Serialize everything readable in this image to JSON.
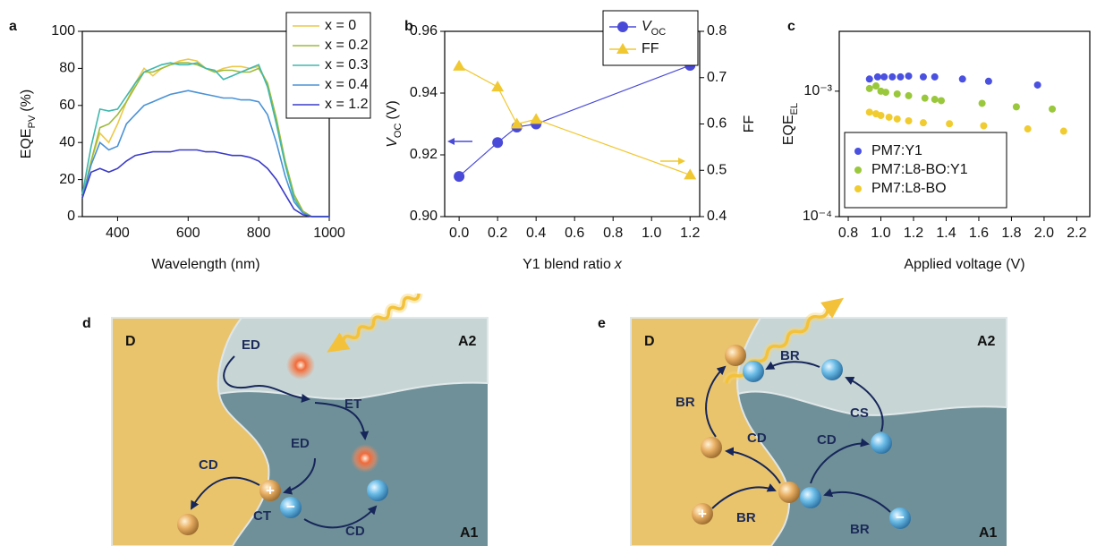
{
  "chart_data": [
    {
      "type": "line",
      "letter": "a",
      "x_label": "Wavelength (nm)",
      "y_label": "EQE",
      "y_label_sub": "PV",
      "y_label_unit": "(%)",
      "x": [
        300,
        325,
        350,
        375,
        400,
        425,
        450,
        475,
        500,
        525,
        550,
        575,
        600,
        625,
        650,
        675,
        700,
        725,
        750,
        775,
        800,
        825,
        850,
        875,
        900,
        925,
        950,
        975,
        1000
      ],
      "series": [
        {
          "name": "x = 0",
          "color": "#ecc94a",
          "values": [
            10,
            30,
            45,
            40,
            50,
            62,
            72,
            80,
            76,
            80,
            82,
            84,
            85,
            84,
            80,
            78,
            80,
            81,
            81,
            80,
            81,
            72,
            52,
            30,
            12,
            3,
            0,
            0,
            0
          ]
        },
        {
          "name": "x = 0.2",
          "color": "#9dbb3a",
          "values": [
            10,
            30,
            48,
            50,
            55,
            62,
            70,
            78,
            78,
            80,
            82,
            83,
            83,
            82,
            80,
            78,
            79,
            79,
            78,
            78,
            80,
            72,
            53,
            30,
            12,
            3,
            0,
            0,
            0
          ]
        },
        {
          "name": "x = 0.3",
          "color": "#3fb8ae",
          "values": [
            12,
            38,
            58,
            57,
            58,
            65,
            72,
            78,
            80,
            82,
            83,
            82,
            82,
            83,
            80,
            79,
            74,
            76,
            78,
            80,
            82,
            70,
            50,
            28,
            10,
            2,
            0,
            0,
            0
          ]
        },
        {
          "name": "x = 0.4",
          "color": "#4a92d6",
          "values": [
            10,
            28,
            40,
            36,
            38,
            50,
            55,
            60,
            62,
            64,
            66,
            67,
            68,
            67,
            66,
            65,
            64,
            64,
            63,
            63,
            62,
            55,
            40,
            22,
            8,
            2,
            0,
            0,
            0
          ]
        },
        {
          "name": "x = 1.2",
          "color": "#3b3bc8",
          "values": [
            10,
            24,
            26,
            24,
            26,
            30,
            33,
            34,
            35,
            35,
            35,
            36,
            36,
            36,
            35,
            35,
            34,
            33,
            33,
            32,
            30,
            26,
            20,
            12,
            4,
            1,
            0,
            0,
            0
          ]
        }
      ],
      "xlim": [
        300,
        1000
      ],
      "xticks": [
        400,
        600,
        800,
        1000
      ],
      "ylim": [
        0,
        100
      ],
      "yticks": [
        0,
        20,
        40,
        60,
        80,
        100
      ],
      "legend": "upper right"
    },
    {
      "type": "line",
      "letter": "b",
      "x_label": "Y1 blend ratio",
      "x_label_var": "x",
      "y_label_var": "V",
      "y_label_sub": "OC",
      "y_label_unit": "(V)",
      "y2_label": "FF",
      "x": [
        0,
        0.2,
        0.3,
        0.4,
        1.2
      ],
      "series": [
        {
          "name": "V",
          "name_sub": "OC",
          "color": "#4a4ad8",
          "marker": "circle",
          "values": [
            0.913,
            0.924,
            0.929,
            0.93,
            0.949
          ]
        },
        {
          "name": "FF",
          "color": "#f0c832",
          "marker": "triangle",
          "axis": "y2",
          "values": [
            0.725,
            0.68,
            0.6,
            0.61,
            0.49
          ]
        }
      ],
      "xlim": [
        -0.075,
        1.25
      ],
      "xticks": [
        {
          "value": 0,
          "label": "0.0"
        },
        0.2,
        0.4,
        0.6,
        0.8,
        {
          "value": 1,
          "label": "1.0"
        },
        1.2
      ],
      "ylim": [
        0.9,
        0.96
      ],
      "yticks": [
        {
          "value": 0.9,
          "label": "0.90"
        },
        0.92,
        0.94,
        0.96
      ],
      "y2lim": [
        0.4,
        0.8
      ],
      "y2ticks": [
        0.4,
        0.5,
        0.6,
        0.7,
        0.8
      ],
      "legend": "upper right"
    },
    {
      "type": "scatter",
      "letter": "c",
      "x_label": "Applied voltage (V)",
      "y_label": "EQE",
      "y_label_sub": "EL",
      "log_y": true,
      "series": [
        {
          "name": "PM7:Y1",
          "color": "#4a50e0",
          "x": [
            0.93,
            0.98,
            1.02,
            1.07,
            1.12,
            1.17,
            1.26,
            1.33,
            1.5,
            1.66,
            1.96
          ],
          "values": [
            0.00125,
            0.0013,
            0.0013,
            0.0013,
            0.0013,
            0.00132,
            0.0013,
            0.0013,
            0.00125,
            0.0012,
            0.00112
          ]
        },
        {
          "name": "PM7:L8-BO:Y1",
          "color": "#9ac83c",
          "x": [
            0.93,
            0.97,
            1.0,
            1.03,
            1.1,
            1.17,
            1.27,
            1.33,
            1.37,
            1.62,
            1.83,
            2.05
          ],
          "values": [
            0.00105,
            0.0011,
            0.001,
            0.00098,
            0.00095,
            0.00092,
            0.00088,
            0.00086,
            0.00084,
            0.0008,
            0.00075,
            0.00072
          ]
        },
        {
          "name": "PM7:L8-BO",
          "color": "#f0cc30",
          "x": [
            0.93,
            0.97,
            1.0,
            1.05,
            1.1,
            1.17,
            1.26,
            1.42,
            1.63,
            1.9,
            2.12
          ],
          "values": [
            0.00068,
            0.00066,
            0.00064,
            0.00062,
            0.0006,
            0.00058,
            0.00056,
            0.00055,
            0.00053,
            0.0005,
            0.00048
          ]
        }
      ],
      "xlim": [
        0.745,
        2.28
      ],
      "xticks": [
        0.8,
        {
          "value": 1,
          "label": "1.0"
        },
        1.2,
        1.4,
        1.6,
        1.8,
        {
          "value": 2,
          "label": "2.0"
        },
        2.2
      ],
      "ylim": [
        0.0001,
        0.003
      ],
      "yticks": [
        {
          "value": 0.0001,
          "label": "10⁻⁴"
        },
        {
          "value": 0.001,
          "label": "10⁻³"
        }
      ],
      "legend": "lower left"
    }
  ],
  "diagrams": [
    {
      "letter": "d",
      "labels": [
        "D",
        "A2",
        "A1",
        "ED",
        "ET",
        "ED",
        "CD",
        "CT",
        "CD"
      ],
      "charges": [
        "+",
        "−"
      ]
    },
    {
      "letter": "e",
      "labels": [
        "D",
        "A2",
        "A1",
        "BR",
        "BR",
        "CS",
        "CD",
        "CD",
        "BR",
        "BR"
      ],
      "charges": [
        "+",
        "−"
      ]
    }
  ]
}
